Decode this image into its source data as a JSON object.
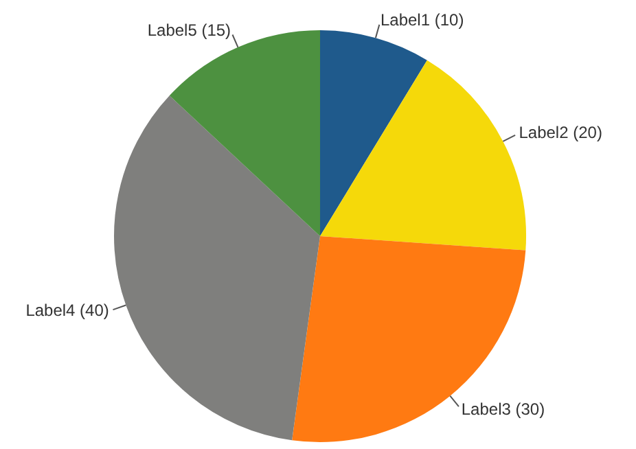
{
  "chart_data": {
    "type": "pie",
    "categories": [
      "Label1 (10)",
      "Label2 (20)",
      "Label3 (30)",
      "Label4 (40)",
      "Label5 (15)"
    ],
    "values": [
      10,
      20,
      30,
      40,
      15
    ],
    "colors": [
      "#1f5a8c",
      "#f5d90a",
      "#ff7a12",
      "#7f7f7d",
      "#4d9140"
    ],
    "legend": false
  }
}
